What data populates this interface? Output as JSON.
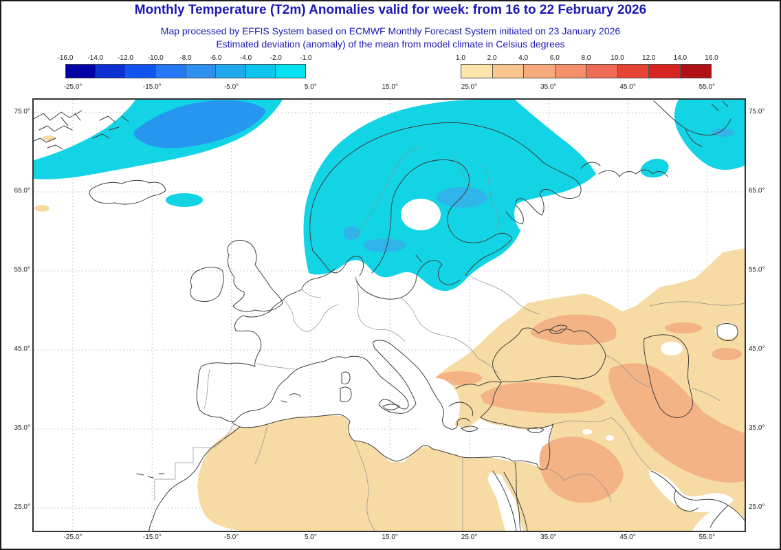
{
  "header": {
    "title": "Monthly Temperature (T2m) Anomalies valid for week: from 16 to 22 February 2026",
    "subtitle1": "Map processed by EFFIS System based on ECMWF Monthly Forecast System initiated on 23 January 2026",
    "subtitle2": "Estimated deviation (anomaly) of the mean from model climate in Celsius degrees",
    "title_color": "#1b18b4"
  },
  "colorbar_negative": {
    "labels": [
      "-16.0",
      "-14.0",
      "-12.0",
      "-10.0",
      "-8.0",
      "-6.0",
      "-4.0",
      "-2.0",
      "-1.0"
    ],
    "colors": [
      "#0101a4",
      "#0c31d2",
      "#1355f2",
      "#2478f6",
      "#2e91f0",
      "#1fa9ec",
      "#0cc5ee",
      "#00e1f2"
    ]
  },
  "colorbar_positive": {
    "labels": [
      "1.0",
      "2.0",
      "4.0",
      "6.0",
      "8.0",
      "10.0",
      "12.0",
      "14.0",
      "16.0"
    ],
    "colors": [
      "#fce4aa",
      "#f8c68e",
      "#f7aa7c",
      "#f5906b",
      "#ee6b55",
      "#e84434",
      "#d82420",
      "#b11014"
    ]
  },
  "axis": {
    "lon_labels": [
      "-25.0°",
      "-15.0°",
      "-5.0°",
      "5.0°",
      "15.0°",
      "25.0°",
      "35.0°",
      "45.0°",
      "55.0°"
    ],
    "lat_labels": [
      "75.0°",
      "65.0°",
      "55.0°",
      "45.0°",
      "35.0°",
      "25.0°"
    ]
  },
  "map": {
    "units": "Celsius degrees",
    "regions": {
      "cool_light": "#12d4e4",
      "cool_mid": "#2fb5e9",
      "cool_deep": "#2796ee",
      "warm_light": "#f7dba4",
      "warm_mid": "#f3b384"
    },
    "grid_color": "#b8b8b8",
    "coast_color": "#3c3c3c",
    "border_color": "#8d8d8d",
    "sea_color": "#ffffff"
  }
}
